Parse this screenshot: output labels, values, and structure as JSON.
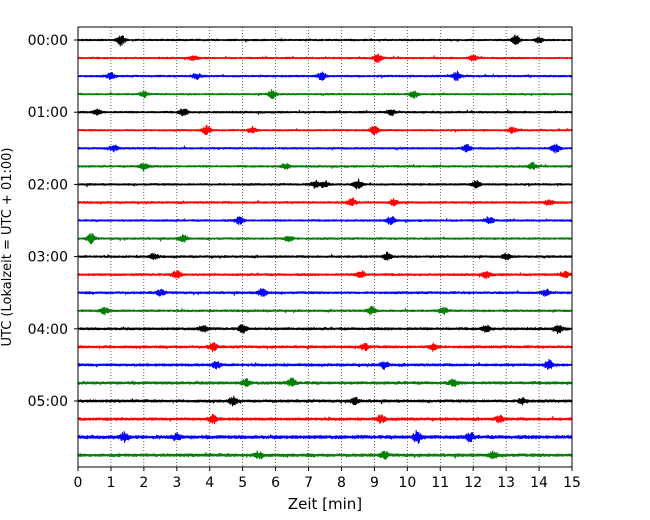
{
  "chart_data": {
    "type": "line",
    "xlabel": "Zeit  [min]",
    "ylabel": "UTC (Lokalzeit = UTC + 01:00)",
    "xlim": [
      0,
      15
    ],
    "xticks": [
      0,
      1,
      2,
      3,
      4,
      5,
      6,
      7,
      8,
      9,
      10,
      11,
      12,
      13,
      14,
      15
    ],
    "grid": "vertical-dotted",
    "hour_labels": [
      {
        "label": "00:00",
        "row": 0
      },
      {
        "label": "01:00",
        "row": 4
      },
      {
        "label": "02:00",
        "row": 8
      },
      {
        "label": "03:00",
        "row": 12
      },
      {
        "label": "04:00",
        "row": 16
      },
      {
        "label": "05:00",
        "row": 20
      }
    ],
    "trace_colors": [
      "#000000",
      "#ff0000",
      "#0000ff",
      "#008000"
    ],
    "trace_count": 24,
    "trace_amplitude": [
      0.9,
      0.9,
      1.0,
      0.9,
      1.0,
      0.9,
      1.0,
      1.0,
      1.0,
      1.1,
      1.0,
      1.0,
      1.1,
      1.2,
      1.2,
      1.1,
      1.3,
      1.3,
      1.4,
      1.5,
      1.4,
      1.5,
      1.9,
      1.6
    ],
    "bursts": [
      [
        [
          1.3,
          2.2
        ],
        [
          13.3,
          2.0
        ],
        [
          14.0,
          1.2
        ]
      ],
      [
        [
          9.1,
          1.8
        ],
        [
          12.0,
          1.2
        ],
        [
          3.5,
          1.0
        ]
      ],
      [
        [
          11.5,
          1.8
        ],
        [
          7.4,
          1.6
        ],
        [
          1.0,
          1.3
        ],
        [
          3.6,
          1.3
        ]
      ],
      [
        [
          5.9,
          1.7
        ],
        [
          10.2,
          1.4
        ],
        [
          2.0,
          1.1
        ]
      ],
      [
        [
          3.2,
          1.6
        ],
        [
          9.5,
          1.3
        ],
        [
          0.6,
          1.2
        ]
      ],
      [
        [
          3.9,
          1.8
        ],
        [
          9.0,
          2.0
        ],
        [
          5.3,
          1.4
        ],
        [
          13.2,
          1.2
        ]
      ],
      [
        [
          14.5,
          2.0
        ],
        [
          11.8,
          1.4
        ],
        [
          1.1,
          1.3
        ]
      ],
      [
        [
          2.0,
          1.8
        ],
        [
          13.8,
          1.3
        ],
        [
          6.3,
          1.2
        ]
      ],
      [
        [
          7.5,
          1.4
        ],
        [
          8.5,
          2.0
        ],
        [
          12.1,
          1.6
        ],
        [
          7.2,
          1.5
        ]
      ],
      [
        [
          8.3,
          1.9
        ],
        [
          9.6,
          1.4
        ],
        [
          14.3,
          1.2
        ]
      ],
      [
        [
          9.5,
          1.6
        ],
        [
          4.9,
          1.5
        ],
        [
          12.5,
          1.3
        ]
      ],
      [
        [
          0.4,
          1.9
        ],
        [
          3.2,
          1.5
        ],
        [
          6.4,
          1.4
        ]
      ],
      [
        [
          9.4,
          1.6
        ],
        [
          13.0,
          1.3
        ],
        [
          2.3,
          1.2
        ]
      ],
      [
        [
          3.0,
          1.7
        ],
        [
          8.6,
          1.5
        ],
        [
          12.4,
          1.4
        ],
        [
          14.8,
          1.2
        ]
      ],
      [
        [
          5.6,
          1.8
        ],
        [
          14.2,
          1.5
        ],
        [
          2.5,
          1.3
        ]
      ],
      [
        [
          0.8,
          1.5
        ],
        [
          8.9,
          1.6
        ],
        [
          11.1,
          1.3
        ]
      ],
      [
        [
          5.0,
          1.7
        ],
        [
          12.4,
          1.5
        ],
        [
          14.6,
          1.6
        ],
        [
          3.8,
          1.4
        ]
      ],
      [
        [
          4.1,
          1.6
        ],
        [
          8.7,
          1.5
        ],
        [
          10.8,
          1.6
        ]
      ],
      [
        [
          14.3,
          1.9
        ],
        [
          4.2,
          1.5
        ],
        [
          9.3,
          1.4
        ]
      ],
      [
        [
          6.5,
          1.7
        ],
        [
          5.1,
          1.4
        ],
        [
          11.4,
          1.3
        ]
      ],
      [
        [
          4.7,
          1.5
        ],
        [
          8.4,
          1.4
        ],
        [
          13.5,
          1.4
        ]
      ],
      [
        [
          4.1,
          1.7
        ],
        [
          9.2,
          1.4
        ],
        [
          12.8,
          1.3
        ]
      ],
      [
        [
          10.3,
          2.2
        ],
        [
          1.4,
          1.8
        ],
        [
          11.9,
          1.6
        ],
        [
          3.0,
          1.3
        ]
      ],
      [
        [
          5.5,
          1.4
        ],
        [
          9.3,
          1.3
        ],
        [
          12.6,
          1.3
        ]
      ]
    ]
  }
}
